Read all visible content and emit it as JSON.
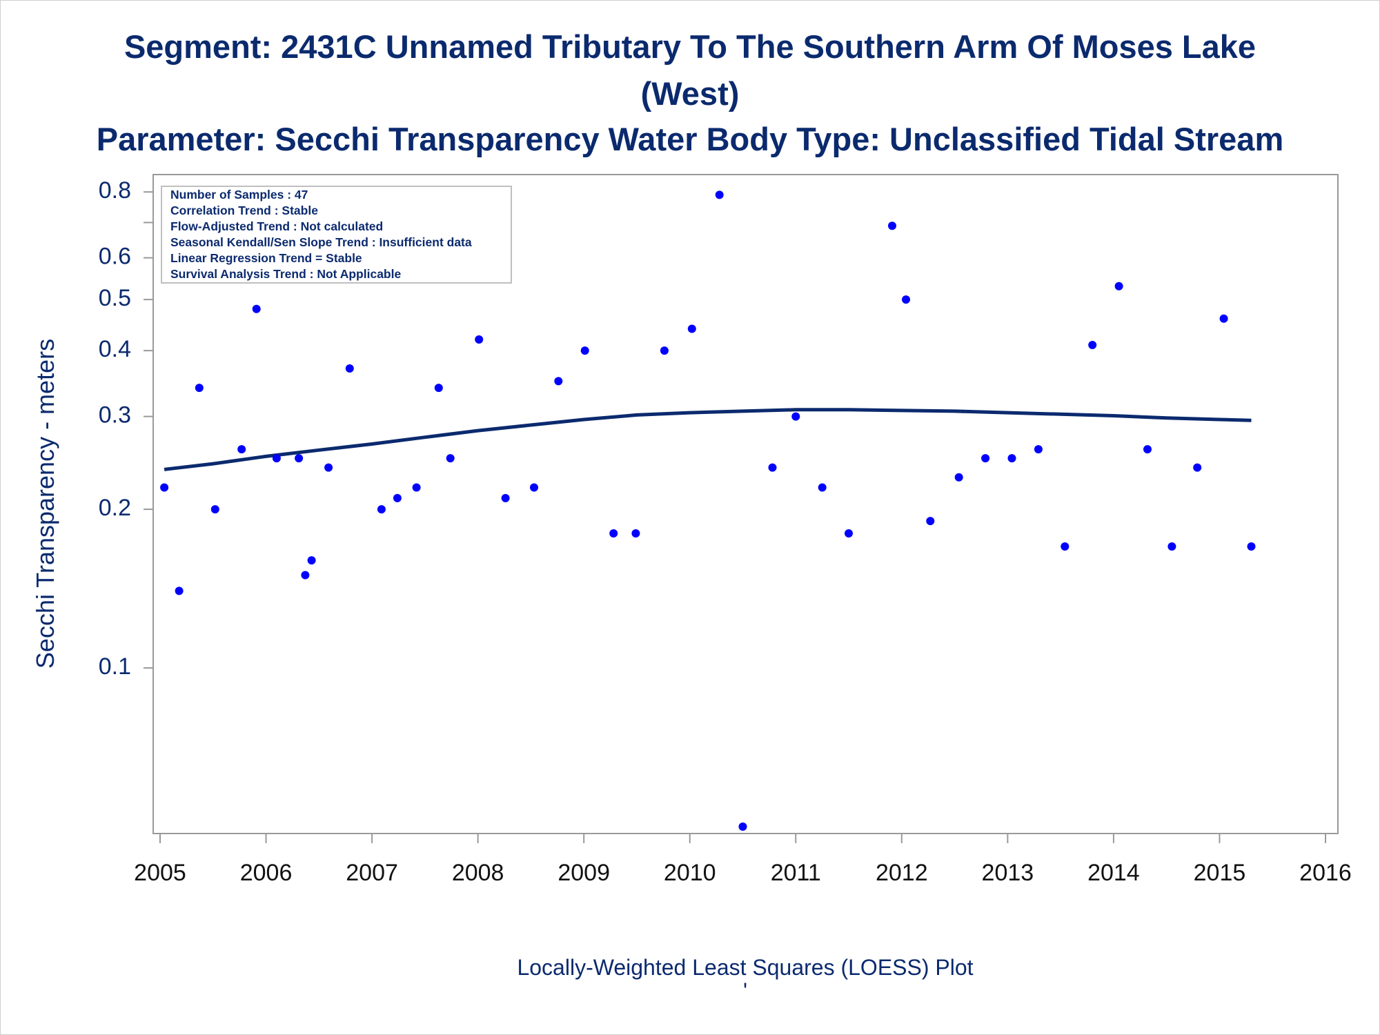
{
  "titles": {
    "line1": "Segment: 2431C  Unnamed Tributary To The Southern Arm Of Moses Lake",
    "line2": "(West)",
    "line3": "Parameter: Secchi Transparency   Water Body Type: Unclassified Tidal Stream"
  },
  "stats_box": [
    "Number of Samples : 47",
    "Correlation Trend : Stable",
    "Flow-Adjusted Trend : Not calculated",
    "Seasonal Kendall/Sen Slope Trend : Insufficient data",
    "Linear Regression Trend = Stable",
    "Survival Analysis Trend : Not Applicable"
  ],
  "footnote": "Locally-Weighted Least Squares (LOESS) Plot",
  "footnote_mark": "'",
  "colors": {
    "text": "#0b2a6e",
    "points": "#0000ff",
    "loess_line": "#0b2a6e",
    "axis": "#999999"
  },
  "chart_data": {
    "type": "scatter",
    "ylabel": "Secchi Transparency - meters",
    "xlabel": "",
    "yscale": "log",
    "xlim": [
      2005,
      2016
    ],
    "ylim": [
      0.05,
      0.82
    ],
    "x_ticks": [
      2005,
      2006,
      2007,
      2008,
      2009,
      2010,
      2011,
      2012,
      2013,
      2014,
      2015,
      2016
    ],
    "x_tick_labels": [
      "2005",
      "2006",
      "2007",
      "2008",
      "2009",
      "2010",
      "2011",
      "2012",
      "2013",
      "2014",
      "2015",
      "2016"
    ],
    "y_ticks": [
      0.1,
      0.2,
      0.3,
      0.4,
      0.5,
      0.6,
      0.8
    ],
    "y_tick_labels": [
      "0.1",
      "0.2",
      "0.3",
      "0.4",
      "0.5",
      "0.6",
      "0.8"
    ],
    "y_minor_ticks": [
      0.7
    ],
    "legend_position": "top-left",
    "points": [
      {
        "x": 2005.04,
        "y": 0.22
      },
      {
        "x": 2005.18,
        "y": 0.14
      },
      {
        "x": 2005.37,
        "y": 0.34
      },
      {
        "x": 2005.52,
        "y": 0.2
      },
      {
        "x": 2005.77,
        "y": 0.26
      },
      {
        "x": 2005.91,
        "y": 0.48
      },
      {
        "x": 2006.1,
        "y": 0.25
      },
      {
        "x": 2006.31,
        "y": 0.25
      },
      {
        "x": 2006.37,
        "y": 0.15
      },
      {
        "x": 2006.43,
        "y": 0.16
      },
      {
        "x": 2006.59,
        "y": 0.24
      },
      {
        "x": 2006.79,
        "y": 0.37
      },
      {
        "x": 2007.09,
        "y": 0.2
      },
      {
        "x": 2007.24,
        "y": 0.21
      },
      {
        "x": 2007.42,
        "y": 0.22
      },
      {
        "x": 2007.63,
        "y": 0.34
      },
      {
        "x": 2007.74,
        "y": 0.25
      },
      {
        "x": 2008.01,
        "y": 0.42
      },
      {
        "x": 2008.26,
        "y": 0.21
      },
      {
        "x": 2008.53,
        "y": 0.22
      },
      {
        "x": 2008.76,
        "y": 0.35
      },
      {
        "x": 2009.01,
        "y": 0.4
      },
      {
        "x": 2009.28,
        "y": 0.18
      },
      {
        "x": 2009.49,
        "y": 0.18
      },
      {
        "x": 2009.76,
        "y": 0.4
      },
      {
        "x": 2010.02,
        "y": 0.44
      },
      {
        "x": 2010.28,
        "y": 0.79
      },
      {
        "x": 2010.5,
        "y": 0.05
      },
      {
        "x": 2010.78,
        "y": 0.24
      },
      {
        "x": 2011.0,
        "y": 0.3
      },
      {
        "x": 2011.25,
        "y": 0.22
      },
      {
        "x": 2011.5,
        "y": 0.18
      },
      {
        "x": 2011.91,
        "y": 0.69
      },
      {
        "x": 2012.04,
        "y": 0.5
      },
      {
        "x": 2012.27,
        "y": 0.19
      },
      {
        "x": 2012.54,
        "y": 0.23
      },
      {
        "x": 2012.79,
        "y": 0.25
      },
      {
        "x": 2013.04,
        "y": 0.25
      },
      {
        "x": 2013.29,
        "y": 0.26
      },
      {
        "x": 2013.54,
        "y": 0.17
      },
      {
        "x": 2013.8,
        "y": 0.41
      },
      {
        "x": 2014.05,
        "y": 0.53
      },
      {
        "x": 2014.32,
        "y": 0.26
      },
      {
        "x": 2014.55,
        "y": 0.17
      },
      {
        "x": 2014.79,
        "y": 0.24
      },
      {
        "x": 2015.04,
        "y": 0.46
      },
      {
        "x": 2015.3,
        "y": 0.17
      }
    ],
    "loess": [
      {
        "x": 2005.04,
        "y": 0.238
      },
      {
        "x": 2005.5,
        "y": 0.244
      },
      {
        "x": 2006.0,
        "y": 0.252
      },
      {
        "x": 2006.5,
        "y": 0.259
      },
      {
        "x": 2007.0,
        "y": 0.266
      },
      {
        "x": 2007.5,
        "y": 0.274
      },
      {
        "x": 2008.0,
        "y": 0.282
      },
      {
        "x": 2008.5,
        "y": 0.289
      },
      {
        "x": 2009.0,
        "y": 0.296
      },
      {
        "x": 2009.5,
        "y": 0.302
      },
      {
        "x": 2010.0,
        "y": 0.305
      },
      {
        "x": 2010.5,
        "y": 0.307
      },
      {
        "x": 2011.0,
        "y": 0.309
      },
      {
        "x": 2011.5,
        "y": 0.309
      },
      {
        "x": 2012.0,
        "y": 0.308
      },
      {
        "x": 2012.5,
        "y": 0.307
      },
      {
        "x": 2013.0,
        "y": 0.305
      },
      {
        "x": 2013.5,
        "y": 0.303
      },
      {
        "x": 2014.0,
        "y": 0.301
      },
      {
        "x": 2014.5,
        "y": 0.298
      },
      {
        "x": 2015.0,
        "y": 0.296
      },
      {
        "x": 2015.3,
        "y": 0.295
      }
    ]
  }
}
